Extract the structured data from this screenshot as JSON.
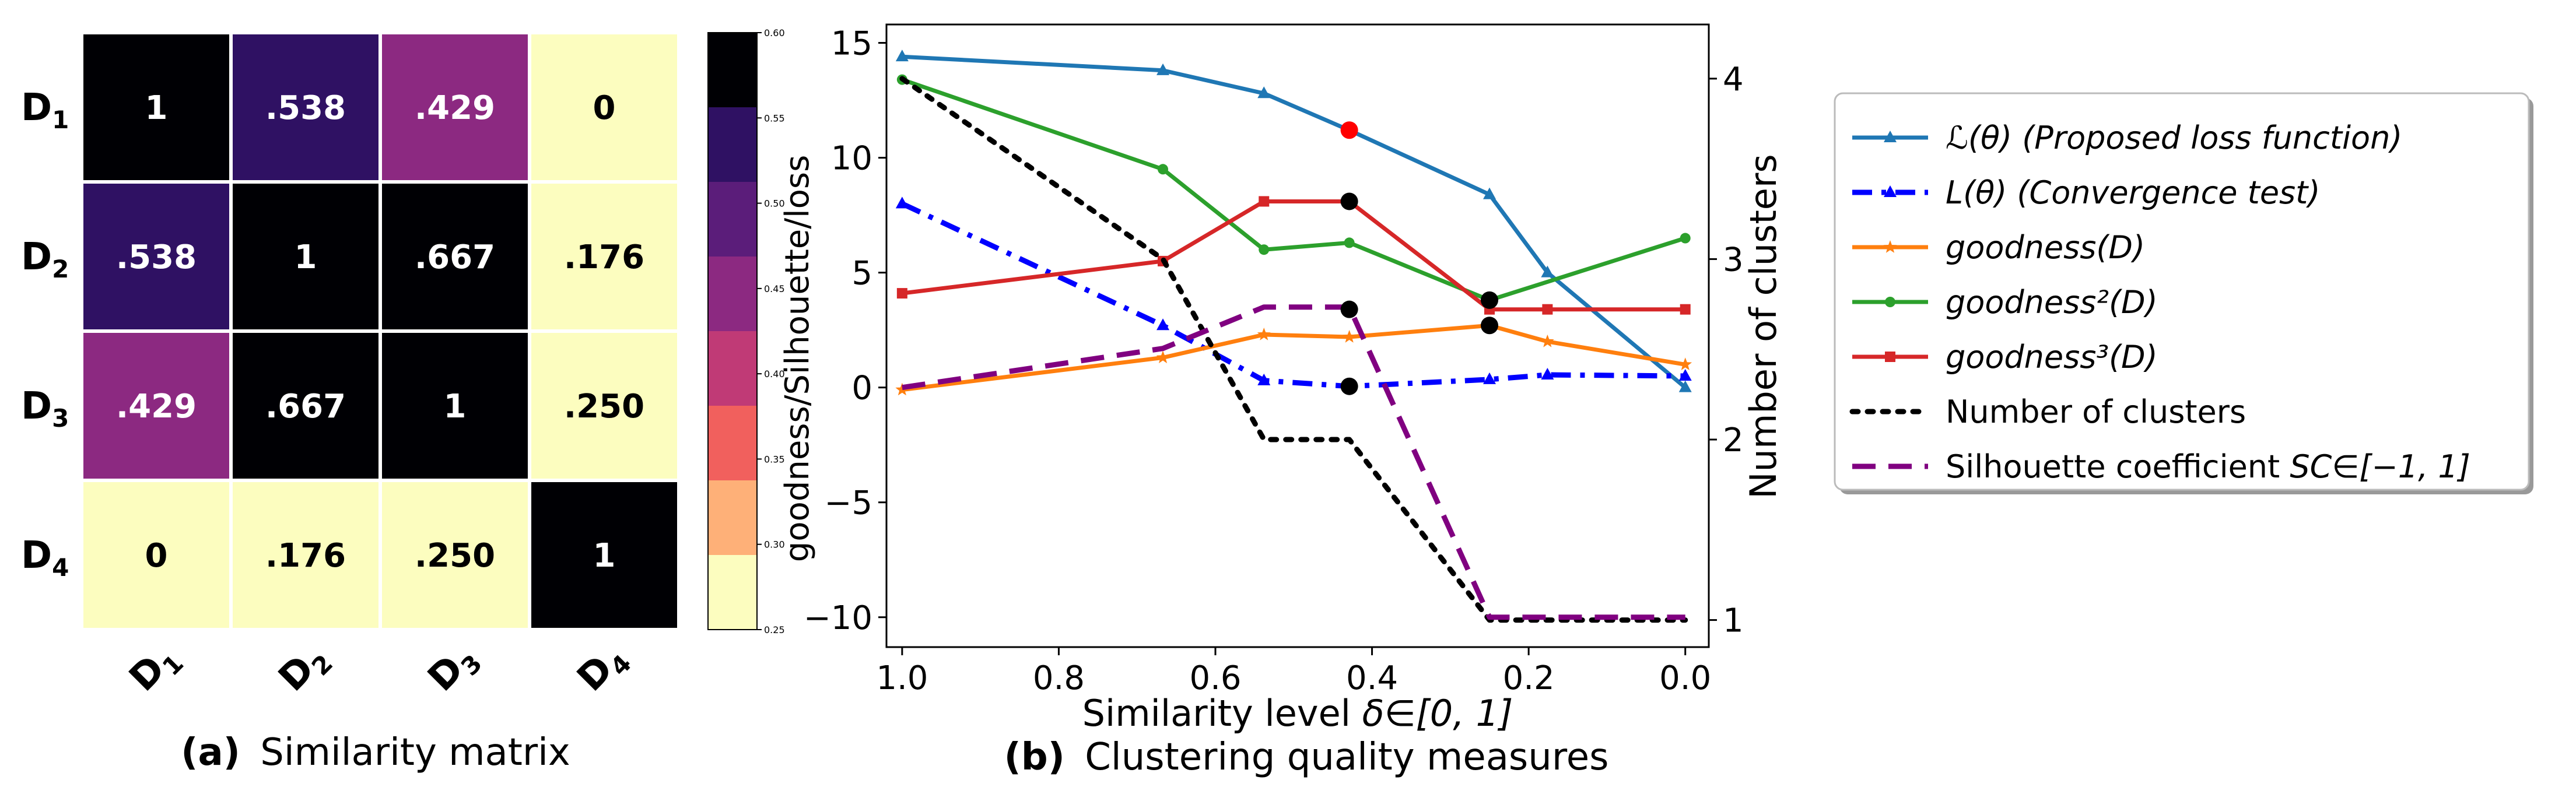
{
  "panel_a": {
    "caption_prefix": "(a)",
    "caption_text": "Similarity matrix",
    "row_labels": [
      "D",
      "D",
      "D",
      "D"
    ],
    "row_subscripts": [
      "1",
      "2",
      "3",
      "4"
    ],
    "col_labels": [
      "D",
      "D",
      "D",
      "D"
    ],
    "col_subscripts": [
      "1",
      "2",
      "3",
      "4"
    ],
    "colorbar_label": "goodness/Silhouette/loss",
    "colorbar_ticks": [
      "0.60",
      "0.55",
      "0.50",
      "0.45",
      "0.40",
      "0.35",
      "0.30",
      "0.25"
    ]
  },
  "panel_b": {
    "caption_prefix": "(b)",
    "caption_text": "Clustering quality measures"
  },
  "chart_data": [
    {
      "type": "heatmap",
      "title": "Similarity matrix",
      "rows": [
        "D1",
        "D2",
        "D3",
        "D4"
      ],
      "columns": [
        "D1",
        "D2",
        "D3",
        "D4"
      ],
      "values": [
        [
          1,
          0.538,
          0.429,
          0
        ],
        [
          0.538,
          1,
          0.667,
          0.176
        ],
        [
          0.429,
          0.667,
          1,
          0.25
        ],
        [
          0,
          0.176,
          0.25,
          1
        ]
      ],
      "cell_labels": [
        [
          "1",
          ".538",
          ".429",
          "0"
        ],
        [
          ".538",
          "1",
          ".667",
          ".176"
        ],
        [
          ".429",
          ".667",
          "1",
          ".250"
        ],
        [
          "0",
          ".176",
          ".250",
          "1"
        ]
      ],
      "colorbar": {
        "range": [
          0.25,
          0.6
        ],
        "levels": [
          0.25,
          0.3,
          0.35,
          0.4,
          0.45,
          0.5,
          0.55,
          0.6
        ],
        "colors": [
          "#fcfdbf",
          "#feb078",
          "#f1605d",
          "#c03a76",
          "#8c2981",
          "#5b1d7a",
          "#2f1163",
          "#000004"
        ],
        "label": "goodness/Silhouette/loss"
      }
    },
    {
      "type": "line",
      "title": "Clustering quality measures",
      "xlabel_prefix": "Similarity level ",
      "xlabel_math": "δ∈[0, 1]",
      "ylabel_left": "goodness/Silhouette/loss",
      "ylabel_right": "Number of clusters",
      "xlim": [
        1.02,
        -0.03
      ],
      "ylim_left": [
        -11.3,
        15.8
      ],
      "ylim_right": [
        0.85,
        4.3
      ],
      "x_ticks": [
        1.0,
        0.8,
        0.6,
        0.4,
        0.2,
        0.0
      ],
      "x_tick_labels": [
        "1.0",
        "0.8",
        "0.6",
        "0.4",
        "0.2",
        "0.0"
      ],
      "y_left_ticks": [
        15,
        10,
        5,
        0,
        -5,
        -10
      ],
      "y_left_tick_labels": [
        "15",
        "10",
        "5",
        "0",
        "−5",
        "−10"
      ],
      "y_right_ticks": [
        4,
        3,
        2,
        1
      ],
      "y_right_tick_labels": [
        "4",
        "3",
        "2",
        "1"
      ],
      "series": [
        {
          "name": "L(θ) (Proposed loss function)",
          "axis": "left",
          "color": "#1f77b4",
          "dash": "solid",
          "marker": "triangle",
          "x": [
            1.0,
            0.667,
            0.538,
            0.429,
            0.25,
            0.176,
            0.0
          ],
          "y": [
            14.4,
            13.8,
            12.8,
            11.2,
            8.4,
            5.0,
            0.0
          ]
        },
        {
          "name": "L(θ) (Convergence test)",
          "axis": "left",
          "color": "#0000ff",
          "dash": "dashdot",
          "marker": "triangle",
          "x": [
            1.0,
            0.667,
            0.538,
            0.429,
            0.25,
            0.176,
            0.0
          ],
          "y": [
            8.0,
            2.7,
            0.3,
            0.05,
            0.35,
            0.55,
            0.5
          ]
        },
        {
          "name": "goodness(D)",
          "axis": "left",
          "color": "#ff7f0e",
          "dash": "solid",
          "marker": "star",
          "x": [
            1.0,
            0.667,
            0.538,
            0.429,
            0.25,
            0.176,
            0.0
          ],
          "y": [
            -0.1,
            1.3,
            2.3,
            2.2,
            2.7,
            2.0,
            1.0
          ]
        },
        {
          "name": "goodness²(D)",
          "axis": "left",
          "color": "#2ca02c",
          "dash": "solid",
          "marker": "circle",
          "x": [
            1.0,
            0.667,
            0.538,
            0.429,
            0.25,
            0.0
          ],
          "y": [
            13.4,
            9.5,
            6.0,
            6.3,
            3.8,
            6.5
          ]
        },
        {
          "name": "goodness³(D)",
          "axis": "left",
          "color": "#d62728",
          "dash": "solid",
          "marker": "square",
          "x": [
            1.0,
            0.667,
            0.538,
            0.429,
            0.25,
            0.176,
            0.0
          ],
          "y": [
            4.1,
            5.5,
            8.1,
            8.1,
            3.4,
            3.4,
            3.4
          ]
        },
        {
          "name": "Number of clusters",
          "axis": "right",
          "color": "#000000",
          "dash": "dotted",
          "marker": "none",
          "x": [
            1.0,
            0.667,
            0.538,
            0.429,
            0.25,
            0.0
          ],
          "y": [
            4,
            3,
            2,
            2,
            1,
            1
          ]
        },
        {
          "name": "Silhouette coefficient SC∈[−1, 1]",
          "axis": "left",
          "color": "#800080",
          "dash": "dashed",
          "marker": "none",
          "x": [
            1.0,
            0.667,
            0.538,
            0.429,
            0.25,
            0.0
          ],
          "y": [
            0.0,
            1.7,
            3.5,
            3.5,
            -10.0,
            -10.0
          ]
        }
      ],
      "highlight_points": [
        {
          "x": 0.429,
          "y": 11.2,
          "color": "#ff0000"
        },
        {
          "x": 0.429,
          "y": 8.1,
          "color": "#000000"
        },
        {
          "x": 0.429,
          "y": 3.4,
          "color": "#000000"
        },
        {
          "x": 0.429,
          "y": 0.05,
          "color": "#000000"
        },
        {
          "x": 0.25,
          "y": 3.8,
          "color": "#000000"
        },
        {
          "x": 0.25,
          "y": 2.7,
          "color": "#000000"
        }
      ],
      "legend": {
        "position": "outside-right",
        "entries": [
          {
            "main": "ℒ(θ)",
            "rest": " (Proposed loss function)"
          },
          {
            "main": "L(θ)",
            "rest": " (Convergence test)"
          },
          {
            "main": "goodness(D)",
            "rest": ""
          },
          {
            "main": "goodness²(D)",
            "rest": ""
          },
          {
            "main": "goodness³(D)",
            "rest": ""
          },
          {
            "main": "Number of clusters",
            "rest": ""
          },
          {
            "main": "Silhouette coefficient ",
            "rest": "SC∈[−1, 1]"
          }
        ]
      }
    }
  ]
}
